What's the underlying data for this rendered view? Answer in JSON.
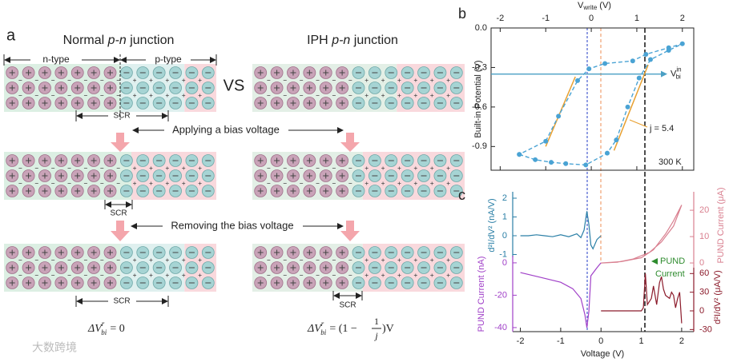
{
  "panel_a": {
    "label": "a",
    "normal_title": {
      "pre": "Normal",
      "italic": "p-n",
      "post": "junction"
    },
    "iph_title": {
      "pre": "IPH",
      "italic": "p-n",
      "post": "junction"
    },
    "n_type": "n-type",
    "p_type": "p-type",
    "vs": "VS",
    "scr": [
      "SCR",
      "SCR",
      "SCR",
      "SCR"
    ],
    "applying": "Applying a bias voltage",
    "removing": "Removing the bias voltage",
    "formula_normal": {
      "delta": "ΔV",
      "sup": "r",
      "sub": "bi",
      "rhs": "= 0"
    },
    "formula_iph": {
      "delta": "ΔV",
      "sup": "r",
      "sub": "bi",
      "rhs_pre": "= (1 −",
      "num": "1",
      "den": "j",
      "rhs_post": ")V"
    },
    "watermark": "大数跨境"
  },
  "chart_data": [
    {
      "type": "line",
      "label": "b",
      "x_label": {
        "main": "V",
        "sub": "write",
        "unit": "(V)"
      },
      "y_label": "Built-in Potential (V)",
      "xlim": [
        -2.2,
        2.25
      ],
      "xticks": [
        -2,
        -1,
        0,
        1,
        2
      ],
      "ylim": [
        -1.08,
        0
      ],
      "yticks": [
        {
          "value": 0,
          "label": "0.0"
        },
        -0.3,
        -0.6,
        -0.9
      ],
      "series": [
        {
          "color": "#4aa3d4",
          "x": [
            -1.58,
            -1.23,
            -0.88,
            -0.56,
            -0.12,
            0.35,
            0.55,
            0.8,
            1.05,
            1.3,
            1.7,
            2.0,
            1.7,
            1.2,
            0.91,
            0.3,
            -0.05,
            -0.3,
            -0.72,
            -1.0,
            -1.58
          ],
          "values": [
            -0.96,
            -1.0,
            -1.02,
            -1.03,
            -1.04,
            -0.95,
            -0.85,
            -0.6,
            -0.38,
            -0.24,
            -0.17,
            -0.12,
            -0.15,
            -0.2,
            -0.25,
            -0.27,
            -0.31,
            -0.4,
            -0.67,
            -0.86,
            -0.96
          ]
        }
      ],
      "fit_lines": [
        {
          "color": "#e8a030",
          "x": [
            -1.0,
            -0.35
          ],
          "values": [
            -0.9,
            -0.37
          ]
        },
        {
          "color": "#e8a030",
          "x": [
            0.5,
            1.25
          ],
          "values": [
            -0.93,
            -0.28
          ]
        }
      ],
      "reference": {
        "value": -0.35,
        "color": "#4a9fc4",
        "label": {
          "main": "V",
          "sub": "bi",
          "sup": "in"
        }
      },
      "annotations": [
        "j = 5.4",
        "300 K"
      ]
    },
    {
      "type": "line",
      "label": "c",
      "x_label": "Voltage (V)",
      "xlim": [
        -2.19,
        2.3
      ],
      "xticks": [
        -2,
        -1,
        0,
        1,
        2
      ],
      "axes": [
        {
          "side": "left",
          "label": "d²I/dV² (nA/V)",
          "color": "#2a7fa6",
          "ylim": [
            -1.15,
            2.34
          ],
          "yticks": [
            -1,
            0,
            1,
            2
          ],
          "series": [
            {
              "x": [
                -2,
                -1.8,
                -1.6,
                -1.4,
                -1.2,
                -1.0,
                -0.8,
                -0.6,
                -0.5,
                -0.42,
                -0.35,
                -0.3,
                -0.25,
                -0.2,
                -0.1,
                0
              ],
              "values": [
                0,
                0,
                0.05,
                0,
                -0.05,
                0.05,
                -0.05,
                0.1,
                -0.1,
                0.3,
                1.3,
                0.6,
                -0.5,
                -0.7,
                -0.2,
                0
              ]
            }
          ]
        },
        {
          "side": "left",
          "label": "PUND Current (nA)",
          "color": "#a040c8",
          "ylim": [
            -42.5,
            4.4
          ],
          "yticks": [
            -40,
            -20,
            0
          ],
          "series": [
            {
              "x": [
                -2,
                -1.5,
                -1,
                -0.7,
                -0.5,
                -0.4,
                -0.35,
                -0.3,
                -0.25,
                -0.1,
                0
              ],
              "values": [
                -6,
                -9,
                -12,
                -16,
                -22,
                -32,
                -40,
                -30,
                -8,
                -3,
                0
              ]
            }
          ]
        },
        {
          "side": "right",
          "label": "PUND Current (μA)",
          "color": "#d98090",
          "ylim": [
            -1.8,
            27
          ],
          "yticks": [
            0,
            10,
            20
          ],
          "series": [
            {
              "x": [
                0,
                0.5,
                1.0,
                1.3,
                1.6,
                1.8,
                2.0,
                1.8,
                1.5,
                1.2,
                0.8,
                0.4,
                0
              ],
              "values": [
                0,
                0.5,
                2,
                5,
                11,
                16,
                22,
                14,
                8,
                4,
                1.5,
                0.3,
                0
              ]
            }
          ]
        },
        {
          "side": "right",
          "label": "d²I/dV² (μA/V)",
          "color": "#8b1a2a",
          "ylim": [
            -33.4,
            69.4
          ],
          "yticks": [
            -30,
            0,
            30,
            60
          ],
          "series": [
            {
              "x": [
                0,
                0.5,
                1.0,
                1.05,
                1.1,
                1.15,
                1.25,
                1.3,
                1.38,
                1.45,
                1.5,
                1.55,
                1.6,
                1.7,
                1.75,
                1.8,
                1.85,
                1.9,
                1.95,
                2.0
              ],
              "values": [
                0,
                0,
                0,
                5,
                60,
                10,
                20,
                40,
                10,
                45,
                55,
                35,
                25,
                20,
                30,
                25,
                5,
                20,
                30,
                -20
              ]
            }
          ]
        }
      ],
      "annotation": {
        "lines": [
          "PUND",
          "Current"
        ],
        "color": "#2e8b2e"
      }
    }
  ]
}
